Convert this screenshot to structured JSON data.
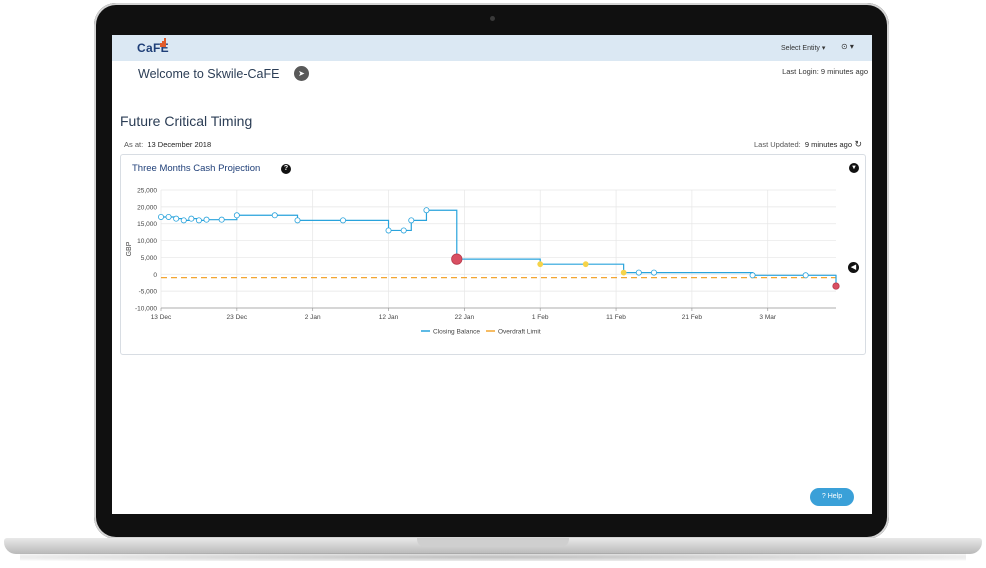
{
  "header": {
    "logo_text": "CaFE",
    "entity_select": "Select Entity ▾",
    "user_menu": "⊙ ▾"
  },
  "welcome": {
    "title": "Welcome to Skwile-CaFE",
    "last_login_label": "Last Login:",
    "last_login_value": "9 minutes ago"
  },
  "page": {
    "title": "Future Critical Timing",
    "as_at_label": "As at:",
    "as_at_value": "13 December 2018",
    "last_updated_label": "Last Updated:",
    "last_updated_value": "9 minutes ago"
  },
  "card": {
    "title": "Three Months Cash Projection"
  },
  "help_button": "? Help",
  "colors": {
    "closing_balance": "#29a3dc",
    "overdraft_limit": "#f2a531",
    "warning_point": "#f5d34a",
    "critical_point": "#d94f62"
  },
  "chart_data": {
    "type": "line",
    "title": "Three Months Cash Projection",
    "xlabel": "",
    "ylabel": "GBP",
    "x_ticks": [
      "13 Dec",
      "23 Dec",
      "2 Jan",
      "12 Jan",
      "22 Jan",
      "1 Feb",
      "11 Feb",
      "21 Feb",
      "3 Mar"
    ],
    "y_ticks": [
      "25,000",
      "20,000",
      "15,000",
      "10,000",
      "5,000",
      "0",
      "-5,000",
      "-10,000"
    ],
    "ylim": [
      -10000,
      25000
    ],
    "x_range_days": [
      0,
      89
    ],
    "grid": true,
    "legend": "bottom-center",
    "series": [
      {
        "name": "Closing Balance",
        "style": "step",
        "points": [
          {
            "x": 0,
            "y": 17000
          },
          {
            "x": 1,
            "y": 17000
          },
          {
            "x": 2,
            "y": 16500
          },
          {
            "x": 3,
            "y": 16000
          },
          {
            "x": 4,
            "y": 16500
          },
          {
            "x": 5,
            "y": 16000
          },
          {
            "x": 6,
            "y": 16200
          },
          {
            "x": 8,
            "y": 16200
          },
          {
            "x": 10,
            "y": 17500
          },
          {
            "x": 15,
            "y": 17500
          },
          {
            "x": 18,
            "y": 16000
          },
          {
            "x": 24,
            "y": 16000
          },
          {
            "x": 30,
            "y": 13000
          },
          {
            "x": 32,
            "y": 13000
          },
          {
            "x": 33,
            "y": 16000
          },
          {
            "x": 35,
            "y": 19000
          },
          {
            "x": 39,
            "y": 4500,
            "marker": "critical"
          },
          {
            "x": 50,
            "y": 3000,
            "marker": "warning"
          },
          {
            "x": 56,
            "y": 3000,
            "marker": "warning"
          },
          {
            "x": 61,
            "y": 500,
            "marker": "warning"
          },
          {
            "x": 63,
            "y": 500
          },
          {
            "x": 65,
            "y": 500
          },
          {
            "x": 78,
            "y": -300
          },
          {
            "x": 85,
            "y": -300
          },
          {
            "x": 89,
            "y": -3500,
            "marker": "critical"
          }
        ]
      },
      {
        "name": "Overdraft Limit",
        "style": "dashed",
        "points": [
          {
            "x": 0,
            "y": -1000
          },
          {
            "x": 89,
            "y": -1000
          }
        ]
      }
    ]
  }
}
